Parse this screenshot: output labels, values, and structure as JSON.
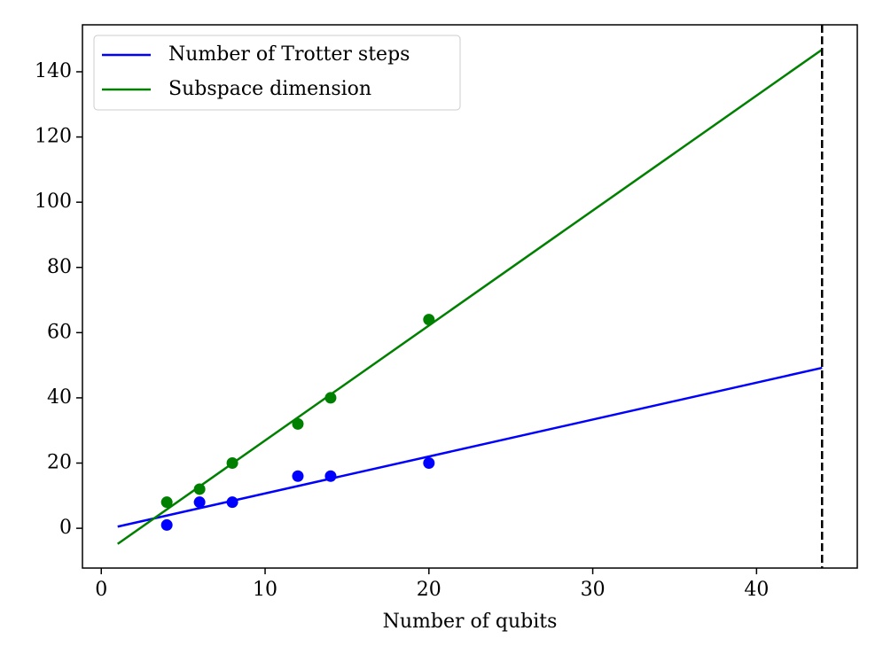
{
  "chart_data": {
    "type": "line",
    "xlabel": "Number of qubits",
    "series": [
      {
        "name": "Number of Trotter steps",
        "color": "#0000ff",
        "x": [
          1,
          44
        ],
        "values": [
          0.5,
          49.2
        ]
      },
      {
        "name": "Subspace dimension",
        "color": "#008000",
        "x": [
          1,
          44
        ],
        "values": [
          -4.8,
          146.8
        ]
      }
    ],
    "points": [
      {
        "color": "#0000ff",
        "x": [
          4,
          6,
          8,
          12,
          14,
          20
        ],
        "values": [
          1,
          8,
          8,
          16,
          16,
          20
        ]
      },
      {
        "color": "#008000",
        "x": [
          4,
          6,
          8,
          12,
          14,
          20
        ],
        "values": [
          8,
          12,
          20,
          32,
          40,
          64
        ]
      }
    ],
    "vline": {
      "x": 44,
      "color": "#000000",
      "style": "dashed"
    },
    "xlim": [
      -1.15,
      46.15
    ],
    "xticks": [
      0,
      10,
      20,
      30,
      40
    ],
    "ylim": [
      -12.2,
      154.4
    ],
    "yticks": [
      0,
      20,
      40,
      60,
      80,
      100,
      120,
      140
    ],
    "grid": false,
    "legend": "upper left"
  }
}
